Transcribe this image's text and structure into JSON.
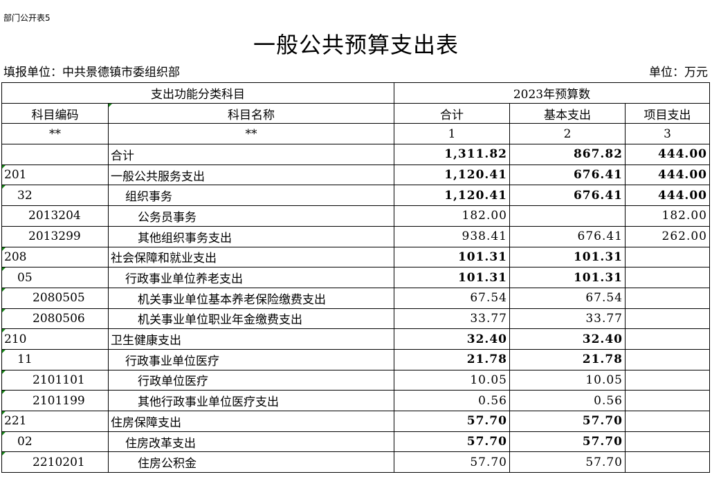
{
  "form_no": "部门公开表5",
  "title": "一般公共预算支出表",
  "unit_left": "填报单位：中共景德镇市委组织部",
  "unit_right": "单位：万元",
  "header": {
    "group_left": "支出功能分类科目",
    "group_right": "2023年预算数",
    "cols": [
      "科目编码",
      "科目名称",
      "合计",
      "基本支出",
      "项目支出"
    ],
    "index": [
      "**",
      "**",
      "1",
      "2",
      "3"
    ]
  },
  "rows": [
    {
      "code": "",
      "name": "合计",
      "total": "1,311.82",
      "basic": "867.82",
      "project": "444.00"
    },
    {
      "code": "201",
      "name": "一般公共服务支出",
      "total": "1,120.41",
      "basic": "676.41",
      "project": "444.00"
    },
    {
      "code": "32",
      "name": "组织事务",
      "total": "1,120.41",
      "basic": "676.41",
      "project": "444.00"
    },
    {
      "code": "2013204",
      "name": "公务员事务",
      "total": "182.00",
      "basic": "",
      "project": "182.00"
    },
    {
      "code": "2013299",
      "name": "其他组织事务支出",
      "total": "938.41",
      "basic": "676.41",
      "project": "262.00"
    },
    {
      "code": "208",
      "name": "社会保障和就业支出",
      "total": "101.31",
      "basic": "101.31",
      "project": ""
    },
    {
      "code": "05",
      "name": "行政事业单位养老支出",
      "total": "101.31",
      "basic": "101.31",
      "project": ""
    },
    {
      "code": "2080505",
      "name": "机关事业单位基本养老保险缴费支出",
      "total": "67.54",
      "basic": "67.54",
      "project": ""
    },
    {
      "code": "2080506",
      "name": "机关事业单位职业年金缴费支出",
      "total": "33.77",
      "basic": "33.77",
      "project": ""
    },
    {
      "code": "210",
      "name": "卫生健康支出",
      "total": "32.40",
      "basic": "32.40",
      "project": ""
    },
    {
      "code": "11",
      "name": "行政事业单位医疗",
      "total": "21.78",
      "basic": "21.78",
      "project": ""
    },
    {
      "code": "2101101",
      "name": "行政单位医疗",
      "total": "10.05",
      "basic": "10.05",
      "project": ""
    },
    {
      "code": "2101199",
      "name": "其他行政事业单位医疗支出",
      "total": "0.56",
      "basic": "0.56",
      "project": ""
    },
    {
      "code": "221",
      "name": "住房保障支出",
      "total": "57.70",
      "basic": "57.70",
      "project": ""
    },
    {
      "code": "02",
      "name": "住房改革支出",
      "total": "57.70",
      "basic": "57.70",
      "project": ""
    },
    {
      "code": "2210201",
      "name": "住房公积金",
      "total": "57.70",
      "basic": "57.70",
      "project": ""
    }
  ]
}
